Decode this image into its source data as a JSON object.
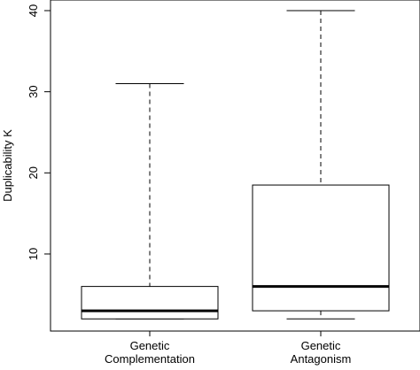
{
  "chart_data": {
    "type": "boxplot",
    "ylabel": "Duplicability K",
    "xlabel": "",
    "title": "",
    "ylim": [
      0,
      41
    ],
    "yticks": [
      10,
      20,
      30,
      40
    ],
    "grid": false,
    "categories": [
      {
        "lines": [
          "Genetic",
          "Complementation"
        ]
      },
      {
        "lines": [
          "Genetic",
          "Antagonism"
        ]
      }
    ],
    "boxes": [
      {
        "min": 2,
        "q1": 2,
        "median": 3,
        "q3": 6,
        "max": 31
      },
      {
        "min": 2,
        "q1": 3,
        "median": 6,
        "q3": 18.5,
        "max": 40
      }
    ],
    "colors": {
      "stroke": "#000000",
      "fill": "#ffffff"
    }
  }
}
